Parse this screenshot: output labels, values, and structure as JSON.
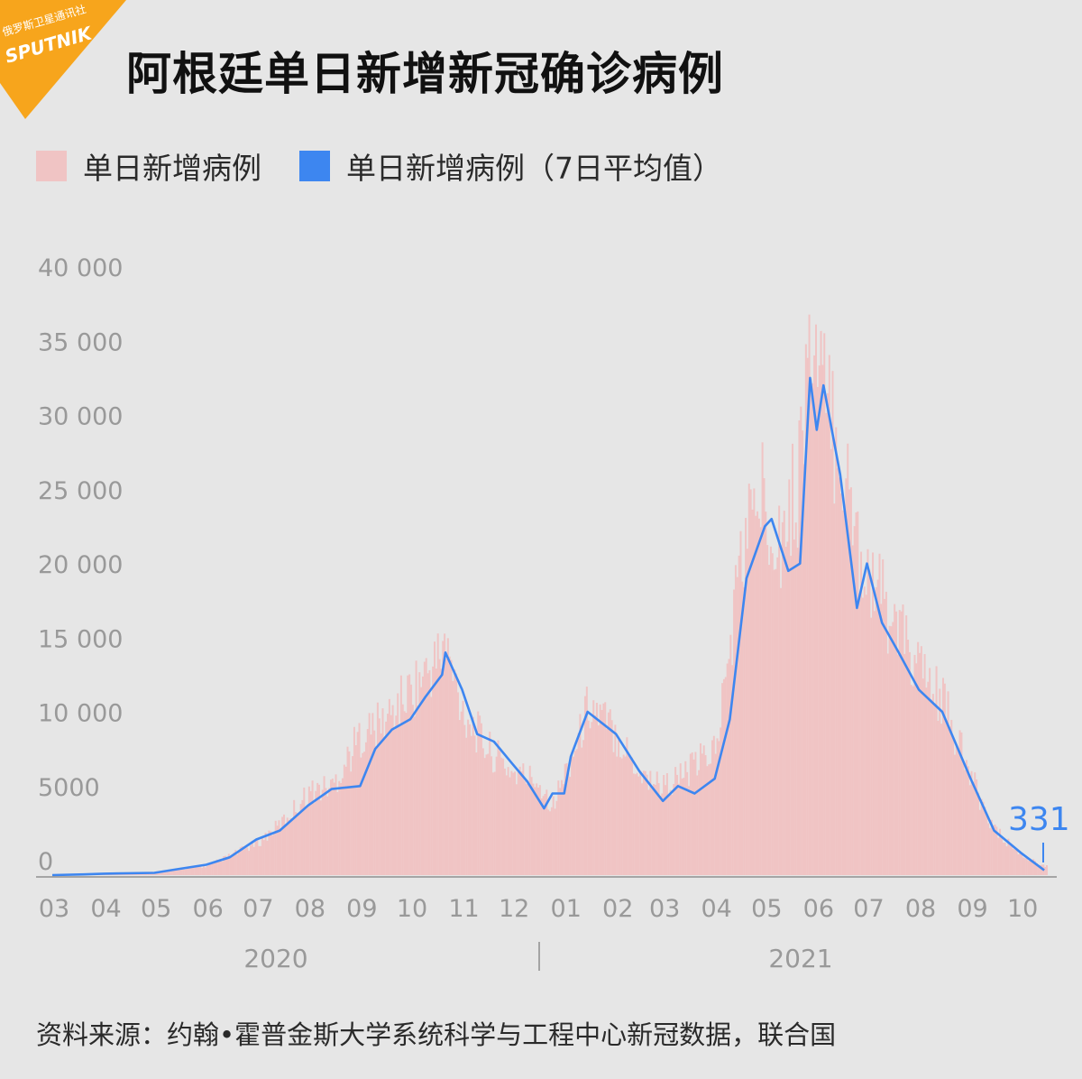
{
  "logo": {
    "agency": "俄罗斯卫星通讯社",
    "brand": "SPUTNIK",
    "color": "#f7a51c"
  },
  "title": "阿根廷单日新增新冠确诊病例",
  "legend": [
    {
      "label": "单日新增病例",
      "color": "#f0c4c4"
    },
    {
      "label": "单日新增病例（7日平均值）",
      "color": "#3d86f0"
    }
  ],
  "source": "资料来源：约翰•霍普金斯大学系统科学与工程中心新冠数据，联合国",
  "chart_data": {
    "type": "bar+line",
    "y_ticks": [
      "0",
      "5000",
      "10 000",
      "15 000",
      "20 000",
      "25 000",
      "30 000",
      "35 000",
      "40 000"
    ],
    "ylim": [
      0,
      42000
    ],
    "x_month_labels": [
      "03",
      "04",
      "05",
      "06",
      "07",
      "08",
      "09",
      "10",
      "11",
      "12",
      "01",
      "02",
      "03",
      "04",
      "05",
      "06",
      "07",
      "08",
      "09",
      "10"
    ],
    "x_range": [
      "2020-03-01",
      "2021-10-16"
    ],
    "years": [
      "2020",
      "2021"
    ],
    "end_value_label": "331",
    "series": [
      {
        "name": "单日新增病例",
        "kind": "bar",
        "color": "#f0c4c4",
        "approx_envelope": [
          [
            "2020-03-01",
            0
          ],
          [
            "2020-04-01",
            100
          ],
          [
            "2020-05-01",
            250
          ],
          [
            "2020-06-01",
            700
          ],
          [
            "2020-07-01",
            2500
          ],
          [
            "2020-07-15",
            4000
          ],
          [
            "2020-08-01",
            6500
          ],
          [
            "2020-08-15",
            7000
          ],
          [
            "2020-09-01",
            11000
          ],
          [
            "2020-09-15",
            12000
          ],
          [
            "2020-10-01",
            14500
          ],
          [
            "2020-10-15",
            16500
          ],
          [
            "2020-10-21",
            18000
          ],
          [
            "2020-11-01",
            13000
          ],
          [
            "2020-11-15",
            10000
          ],
          [
            "2020-12-01",
            8000
          ],
          [
            "2020-12-15",
            7500
          ],
          [
            "2020-12-25",
            5500
          ],
          [
            "2021-01-01",
            8000
          ],
          [
            "2021-01-10",
            11000
          ],
          [
            "2021-01-15",
            13500
          ],
          [
            "2021-02-01",
            11000
          ],
          [
            "2021-02-15",
            8000
          ],
          [
            "2021-03-01",
            7000
          ],
          [
            "2021-03-15",
            8000
          ],
          [
            "2021-04-01",
            10000
          ],
          [
            "2021-04-08",
            16000
          ],
          [
            "2021-04-15",
            24000
          ],
          [
            "2021-04-25",
            29500
          ],
          [
            "2021-05-01",
            29500
          ],
          [
            "2021-05-10",
            26500
          ],
          [
            "2021-05-20",
            30500
          ],
          [
            "2021-05-25",
            39000
          ],
          [
            "2021-05-28",
            41500
          ],
          [
            "2021-06-05",
            37000
          ],
          [
            "2021-06-15",
            33000
          ],
          [
            "2021-06-25",
            26000
          ],
          [
            "2021-07-01",
            24000
          ],
          [
            "2021-07-15",
            20000
          ],
          [
            "2021-08-01",
            16000
          ],
          [
            "2021-08-15",
            13500
          ],
          [
            "2021-09-01",
            7500
          ],
          [
            "2021-09-15",
            3500
          ],
          [
            "2021-10-01",
            1500
          ],
          [
            "2021-10-15",
            700
          ]
        ]
      },
      {
        "name": "单日新增病例（7日平均值）",
        "kind": "line",
        "color": "#3d86f0",
        "points": [
          [
            "2020-03-01",
            0
          ],
          [
            "2020-03-20",
            50
          ],
          [
            "2020-04-01",
            100
          ],
          [
            "2020-05-01",
            150
          ],
          [
            "2020-05-15",
            400
          ],
          [
            "2020-06-01",
            700
          ],
          [
            "2020-06-15",
            1200
          ],
          [
            "2020-07-01",
            2400
          ],
          [
            "2020-07-15",
            3000
          ],
          [
            "2020-08-01",
            4700
          ],
          [
            "2020-08-15",
            5800
          ],
          [
            "2020-09-01",
            6000
          ],
          [
            "2020-09-10",
            8500
          ],
          [
            "2020-09-20",
            9800
          ],
          [
            "2020-10-01",
            10500
          ],
          [
            "2020-10-10",
            12000
          ],
          [
            "2020-10-20",
            13500
          ],
          [
            "2020-10-22",
            15000
          ],
          [
            "2020-11-01",
            12500
          ],
          [
            "2020-11-10",
            9500
          ],
          [
            "2020-11-20",
            9000
          ],
          [
            "2020-12-01",
            7500
          ],
          [
            "2020-12-10",
            6300
          ],
          [
            "2020-12-20",
            4500
          ],
          [
            "2020-12-25",
            5500
          ],
          [
            "2021-01-01",
            5500
          ],
          [
            "2021-01-05",
            8000
          ],
          [
            "2021-01-15",
            11000
          ],
          [
            "2021-02-01",
            9500
          ],
          [
            "2021-02-15",
            7000
          ],
          [
            "2021-03-01",
            5000
          ],
          [
            "2021-03-10",
            6000
          ],
          [
            "2021-03-20",
            5500
          ],
          [
            "2021-04-01",
            6500
          ],
          [
            "2021-04-10",
            10500
          ],
          [
            "2021-04-20",
            20000
          ],
          [
            "2021-05-01",
            23500
          ],
          [
            "2021-05-05",
            24000
          ],
          [
            "2021-05-15",
            20500
          ],
          [
            "2021-05-22",
            21000
          ],
          [
            "2021-05-28",
            33500
          ],
          [
            "2021-06-01",
            30000
          ],
          [
            "2021-06-05",
            33000
          ],
          [
            "2021-06-15",
            27000
          ],
          [
            "2021-06-25",
            18000
          ],
          [
            "2021-07-01",
            21000
          ],
          [
            "2021-07-10",
            17000
          ],
          [
            "2021-07-20",
            15000
          ],
          [
            "2021-08-01",
            12500
          ],
          [
            "2021-08-15",
            11000
          ],
          [
            "2021-09-01",
            6500
          ],
          [
            "2021-09-15",
            3000
          ],
          [
            "2021-10-01",
            1500
          ],
          [
            "2021-10-15",
            331
          ]
        ]
      }
    ]
  }
}
